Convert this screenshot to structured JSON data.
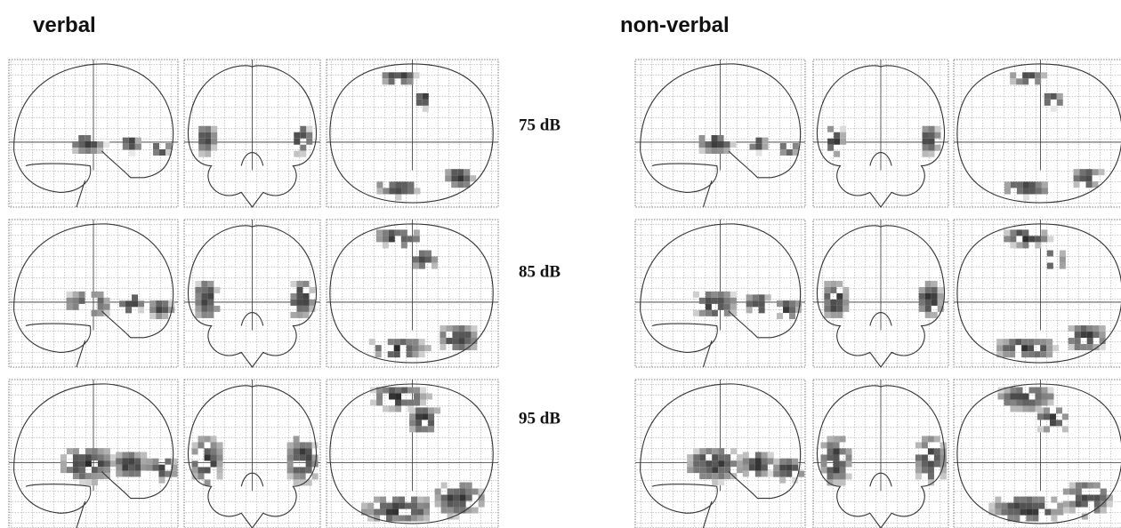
{
  "groups": [
    {
      "title": "verbal"
    },
    {
      "title": "non-verbal"
    }
  ],
  "levels": [
    "75 dB",
    "85 dB",
    "95 dB"
  ]
}
